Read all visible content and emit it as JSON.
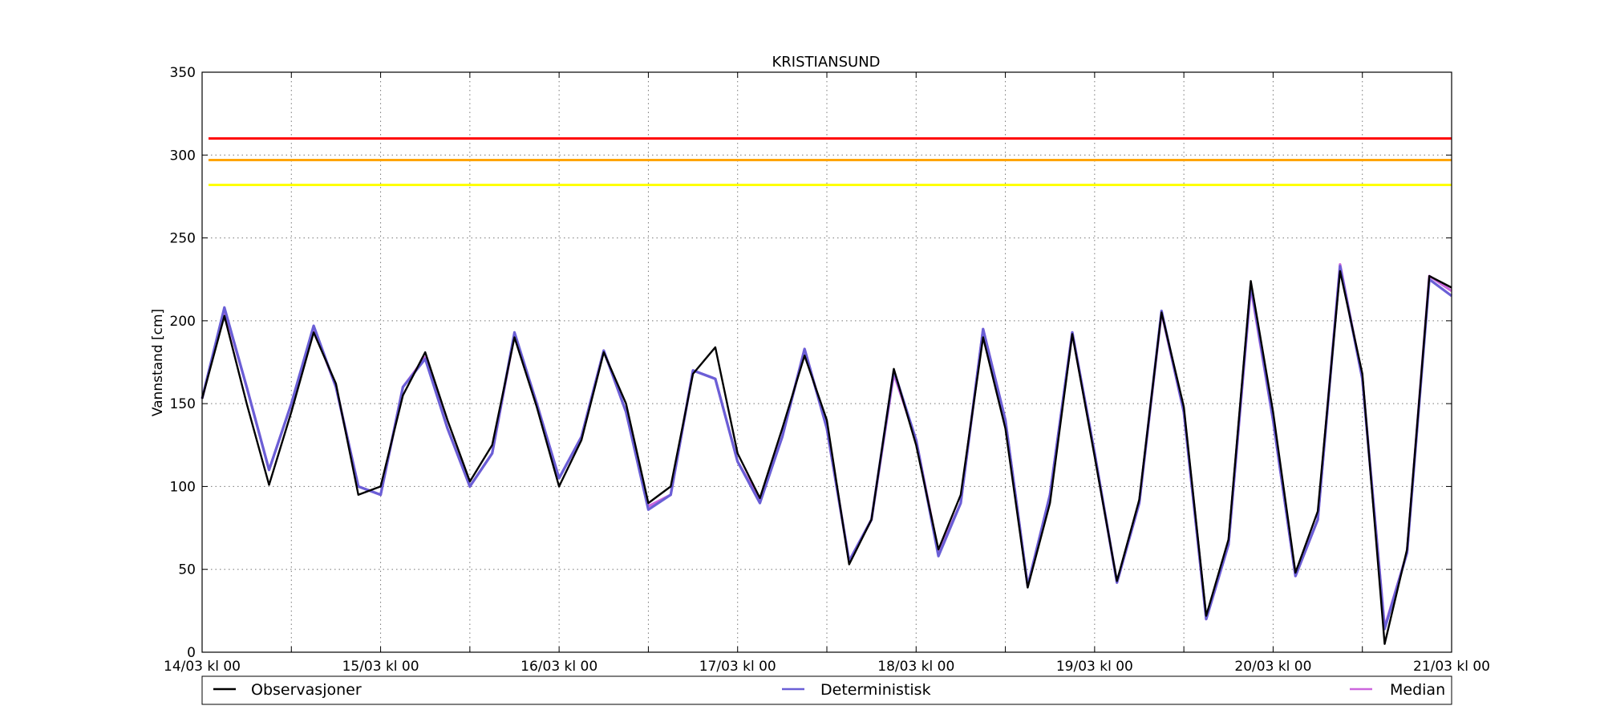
{
  "chart_data": {
    "type": "line",
    "title": "KRISTIANSUND",
    "xlabel": "",
    "ylabel": "Vannstand [cm]",
    "ylim": [
      0,
      350
    ],
    "yticks": [
      0,
      50,
      100,
      150,
      200,
      250,
      300,
      350
    ],
    "xlim": [
      0,
      168
    ],
    "x_unit": "hours since 14/03 kl 00",
    "xticks": [
      {
        "x": 0,
        "label": "14/03 kl 00"
      },
      {
        "x": 24,
        "label": "15/03 kl 00"
      },
      {
        "x": 48,
        "label": "16/03 kl 00"
      },
      {
        "x": 72,
        "label": "17/03 kl 00"
      },
      {
        "x": 96,
        "label": "18/03 kl 00"
      },
      {
        "x": 120,
        "label": "19/03 kl 00"
      },
      {
        "x": 144,
        "label": "20/03 kl 00"
      },
      {
        "x": 168,
        "label": "21/03 kl 00"
      }
    ],
    "minor_xticks": [
      12,
      36,
      60,
      84,
      108,
      132,
      156
    ],
    "grid": true,
    "thresholds": [
      {
        "value": 310,
        "color": "#ff0000"
      },
      {
        "value": 297,
        "color": "#ffa500"
      },
      {
        "value": 282,
        "color": "#ffff00"
      }
    ],
    "series": [
      {
        "name": "Median",
        "color": "#cc66dd",
        "x": [
          0,
          3,
          6,
          9,
          12,
          15,
          18,
          21,
          24,
          27,
          30,
          33,
          36,
          39,
          42,
          45,
          48,
          51,
          54,
          57,
          60,
          63,
          66,
          69,
          72,
          75,
          78,
          81,
          84,
          87,
          90,
          93,
          96,
          99,
          102,
          105,
          108,
          111,
          114,
          117,
          120,
          123,
          126,
          129,
          132,
          135,
          138,
          141,
          144,
          147,
          150,
          153,
          156,
          159,
          162,
          165,
          168
        ],
        "values": [
          153,
          207,
          160,
          110,
          150,
          196,
          160,
          100,
          95,
          160,
          178,
          135,
          100,
          120,
          192,
          150,
          105,
          130,
          182,
          145,
          88,
          95,
          170,
          165,
          115,
          92,
          130,
          183,
          135,
          55,
          80,
          168,
          128,
          60,
          90,
          195,
          140,
          40,
          95,
          193,
          120,
          42,
          90,
          205,
          145,
          20,
          65,
          220,
          140,
          46,
          80,
          234,
          165,
          15,
          60,
          227,
          218
        ]
      },
      {
        "name": "Deterministisk",
        "color": "#6a5fd6",
        "x": [
          0,
          3,
          6,
          9,
          12,
          15,
          18,
          21,
          24,
          27,
          30,
          33,
          36,
          39,
          42,
          45,
          48,
          51,
          54,
          57,
          60,
          63,
          66,
          69,
          72,
          75,
          78,
          81,
          84,
          87,
          90,
          93,
          96,
          99,
          102,
          105,
          108,
          111,
          114,
          117,
          120,
          123,
          126,
          129,
          132,
          135,
          138,
          141,
          144,
          147,
          150,
          153,
          156,
          159,
          162,
          165,
          168
        ],
        "values": [
          153,
          208,
          160,
          110,
          150,
          197,
          160,
          100,
          95,
          160,
          177,
          135,
          100,
          120,
          193,
          150,
          105,
          130,
          182,
          145,
          86,
          95,
          170,
          165,
          115,
          90,
          130,
          183,
          135,
          55,
          80,
          170,
          128,
          58,
          90,
          195,
          140,
          40,
          95,
          193,
          120,
          42,
          90,
          206,
          145,
          20,
          65,
          222,
          140,
          46,
          80,
          233,
          165,
          14,
          60,
          225,
          215
        ]
      },
      {
        "name": "Observasjoner",
        "color": "#000000",
        "x": [
          0,
          3,
          6,
          9,
          12,
          15,
          18,
          21,
          24,
          27,
          30,
          33,
          36,
          39,
          42,
          45,
          48,
          51,
          54,
          57,
          60,
          63,
          66,
          69,
          72,
          75,
          78,
          81,
          84,
          87,
          90,
          93,
          96,
          99,
          102,
          105,
          108,
          111,
          114,
          117,
          120,
          123,
          126,
          129,
          132,
          135,
          138,
          141,
          144,
          147,
          150,
          153,
          156,
          159,
          162,
          165,
          168
        ],
        "values": [
          153,
          203,
          150,
          101,
          145,
          193,
          162,
          95,
          100,
          155,
          181,
          140,
          103,
          125,
          190,
          148,
          100,
          128,
          181,
          150,
          90,
          100,
          168,
          184,
          120,
          93,
          135,
          179,
          140,
          53,
          80,
          171,
          125,
          62,
          95,
          190,
          135,
          39,
          90,
          192,
          118,
          43,
          92,
          205,
          148,
          22,
          68,
          224,
          145,
          48,
          85,
          230,
          168,
          5,
          62,
          227,
          220
        ]
      }
    ],
    "legend": {
      "placement": "bottom",
      "entries": [
        "Observasjoner",
        "Deterministisk",
        "Median"
      ]
    }
  }
}
